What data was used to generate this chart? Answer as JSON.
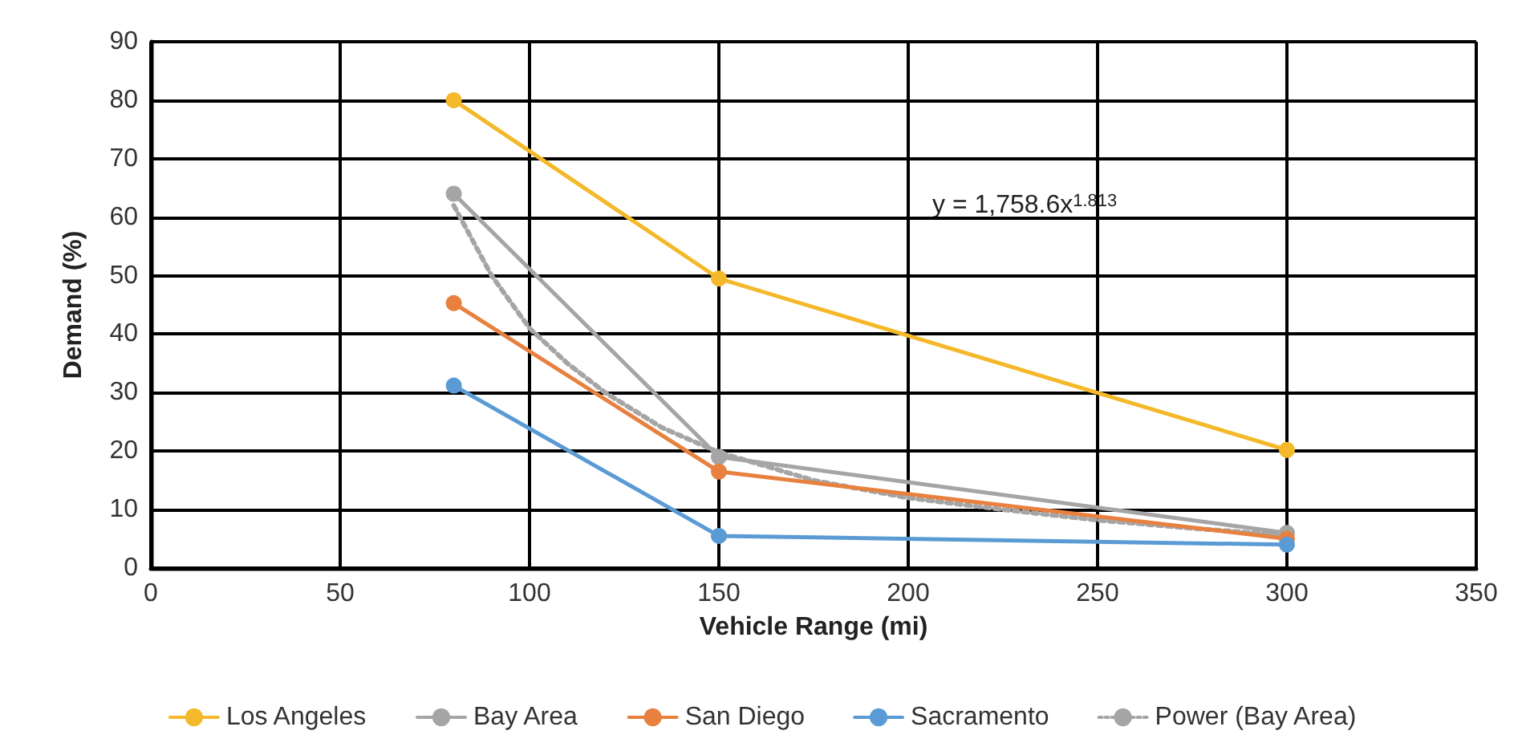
{
  "chart_data": {
    "type": "line",
    "xlabel": "Vehicle Range (mi)",
    "ylabel": "Demand (%)",
    "x": [
      80,
      150,
      300
    ],
    "series": [
      {
        "name": "Los Angeles",
        "color": "#f4b92b",
        "values": [
          80,
          49.5,
          20.2
        ]
      },
      {
        "name": "Bay Area",
        "color": "#a5a5a5",
        "values": [
          64,
          19,
          6
        ]
      },
      {
        "name": "San Diego",
        "color": "#e8813f",
        "values": [
          45.3,
          16.5,
          5
        ]
      },
      {
        "name": "Sacramento",
        "color": "#5b9bd5",
        "values": [
          31.2,
          5.5,
          4
        ]
      },
      {
        "name": "Power (Bay Area)",
        "color": "#a5a5a5",
        "x": [
          80,
          90,
          100,
          110,
          120,
          135,
          150,
          175,
          200,
          225,
          250,
          275,
          300
        ],
        "values": [
          62,
          50,
          41,
          35,
          30,
          24,
          19.8,
          15,
          12,
          10,
          8.2,
          6.8,
          5.6
        ],
        "marker": "none",
        "line_style": "dotted"
      }
    ],
    "xlim": [
      0,
      350
    ],
    "xticks": [
      0,
      50,
      100,
      150,
      200,
      250,
      300,
      350
    ],
    "ylim": [
      0,
      90
    ],
    "yticks": [
      0,
      10,
      20,
      30,
      40,
      50,
      60,
      70,
      80,
      90
    ],
    "grid": true,
    "legend": "bottom",
    "marker": "circle",
    "line_style": "solid",
    "annotations": [
      "y = 1,758.6x$^{1.813}$"
    ]
  }
}
